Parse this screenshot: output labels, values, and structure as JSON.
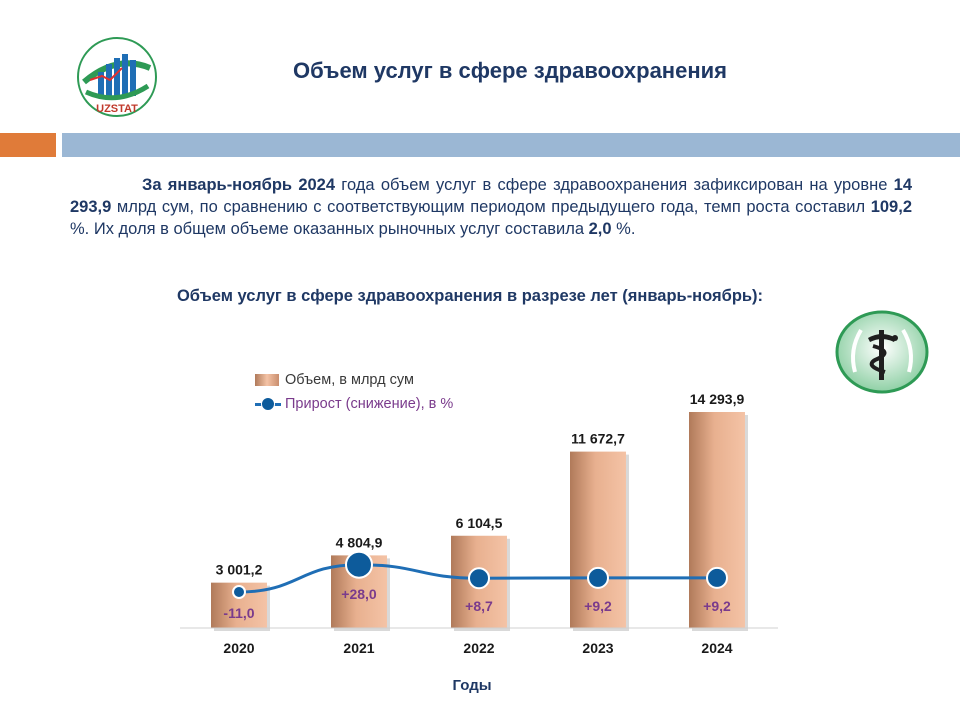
{
  "header": {
    "logo_text": "UZSTAT",
    "title": "Объем услуг в сфере здравоохранения"
  },
  "intro": {
    "lead_bold": "За январь-ноябрь 2024",
    "t1": " года объем услуг в сфере здравоохранения зафиксирован на уровне ",
    "value_bold": "14 293,9",
    "t2": " млрд сум, по сравнению с соответствующим периодом предыдущего года, темп роста составил ",
    "rate_bold": "109,2",
    "t3": " %. Их доля в общем объеме оказанных рыночных услуг составила ",
    "share_bold": "2,0",
    "t4": " %."
  },
  "colors": {
    "title": "#1f3864",
    "bar_dark": "#b07a5a",
    "bar_light": "#f4c3a6",
    "line": "#1f6eb5",
    "marker": "#0d5b9b",
    "growth_label": "#7a3b8c",
    "accent_orange": "#e07b39",
    "accent_blue": "#9bb7d4"
  },
  "icons": {
    "logo": "uzstat-logo-icon",
    "medical": "medical-caduceus-icon"
  },
  "chart_data": {
    "type": "bar",
    "title": "Объем услуг в сфере здравоохранения в разрезе лет (январь-ноябрь):",
    "xlabel": "Годы",
    "categories": [
      "2020",
      "2021",
      "2022",
      "2023",
      "2024"
    ],
    "series": [
      {
        "name": "Объем,  в млрд сум",
        "type": "bar",
        "values": [
          3001.2,
          4804.9,
          6104.5,
          11672.7,
          14293.9
        ],
        "labels": [
          "3 001,2",
          "4 804,9",
          "6 104,5",
          "11 672,7",
          "14 293,9"
        ]
      },
      {
        "name": "Прирост  (снижение),  в %",
        "type": "line",
        "values": [
          -11.0,
          28.0,
          8.7,
          9.2,
          9.2
        ],
        "labels": [
          "-11,0",
          "+28,0",
          "+8,7",
          "+9,2",
          "+9,2"
        ]
      }
    ],
    "legend": "top-left",
    "grid": false
  }
}
